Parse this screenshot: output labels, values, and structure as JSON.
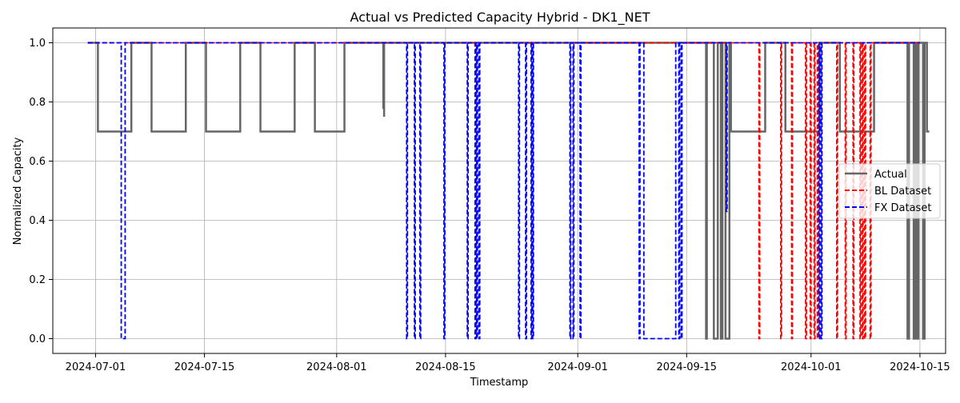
{
  "chart_data": {
    "type": "line",
    "title": "Actual vs Predicted Capacity Hybrid - DK1_NET",
    "xlabel": "Timestamp",
    "ylabel": "Normalized Capacity",
    "x_unit": "days since 2024-07-01",
    "xlim": [
      -5.5,
      109.3
    ],
    "ylim": [
      -0.05,
      1.05
    ],
    "grid": true,
    "legend_position": "center-right",
    "x_ticks": [
      {
        "value": 0,
        "label": "2024-07-01"
      },
      {
        "value": 14,
        "label": "2024-07-15"
      },
      {
        "value": 31,
        "label": "2024-08-01"
      },
      {
        "value": 45,
        "label": "2024-08-15"
      },
      {
        "value": 62,
        "label": "2024-09-01"
      },
      {
        "value": 76,
        "label": "2024-09-15"
      },
      {
        "value": 92,
        "label": "2024-10-01"
      },
      {
        "value": 106,
        "label": "2024-10-15"
      }
    ],
    "y_ticks": [
      {
        "value": 0.0,
        "label": "0.0"
      },
      {
        "value": 0.2,
        "label": "0.2"
      },
      {
        "value": 0.4,
        "label": "0.4"
      },
      {
        "value": 0.6,
        "label": "0.6"
      },
      {
        "value": 0.8,
        "label": "0.8"
      },
      {
        "value": 1.0,
        "label": "1.0"
      }
    ],
    "series": [
      {
        "name": "Actual",
        "color": "#666666",
        "style": "solid",
        "x": [
          -1,
          0.3,
          0.3,
          4.6,
          4.6,
          7.2,
          7.2,
          11.6,
          11.6,
          14.2,
          14.2,
          18.6,
          18.6,
          21.2,
          21.2,
          25.6,
          25.6,
          28.2,
          28.2,
          32.0,
          32.0,
          37.0,
          37.0,
          37.1,
          37.1,
          37.1,
          78.5,
          78.5,
          78.6,
          78.6,
          79.5,
          79.5,
          80.0,
          80.0,
          80.4,
          80.4,
          80.6,
          80.6,
          81.0,
          81.0,
          81.5,
          81.5,
          81.7,
          81.7,
          86.1,
          86.1,
          88.7,
          88.7,
          93.1,
          93.1,
          95.7,
          95.7,
          100.1,
          100.1,
          104.4,
          104.4,
          104.6,
          104.6,
          105.2,
          105.2,
          105.4,
          105.4,
          105.6,
          105.6,
          105.8,
          105.8,
          106.4,
          106.4,
          106.6,
          106.6,
          106.9,
          106.9,
          107.2
        ],
        "y": [
          1.0,
          1.0,
          0.7,
          0.7,
          1.0,
          1.0,
          0.7,
          0.7,
          1.0,
          1.0,
          0.7,
          0.7,
          1.0,
          1.0,
          0.7,
          0.7,
          1.0,
          1.0,
          0.7,
          0.7,
          1.0,
          1.0,
          0.78,
          0.78,
          0.75,
          1.0,
          1.0,
          0.0,
          0.0,
          1.0,
          1.0,
          0.0,
          0.0,
          1.0,
          1.0,
          0.0,
          0.0,
          1.0,
          1.0,
          0.0,
          0.0,
          1.0,
          1.0,
          0.7,
          0.7,
          1.0,
          1.0,
          0.7,
          0.7,
          1.0,
          1.0,
          0.7,
          0.7,
          1.0,
          1.0,
          0.0,
          0.0,
          1.0,
          1.0,
          0.0,
          0.0,
          1.0,
          1.0,
          0.0,
          0.0,
          1.0,
          1.0,
          0.0,
          0.0,
          1.0,
          1.0,
          0.7,
          0.7
        ]
      },
      {
        "name": "BL Dataset",
        "color": "#ff0000",
        "style": "dashed",
        "x": [
          -1,
          85.3,
          85.3,
          85.4,
          85.4,
          88.1,
          88.1,
          88.2,
          88.2,
          89.5,
          89.5,
          89.6,
          89.6,
          91.3,
          91.3,
          91.4,
          91.4,
          91.9,
          91.9,
          92.0,
          92.0,
          92.4,
          92.4,
          92.5,
          92.5,
          92.8,
          92.8,
          92.9,
          92.9,
          95.3,
          95.3,
          95.4,
          95.4,
          96.4,
          96.4,
          96.5,
          96.5,
          97.4,
          97.4,
          97.5,
          97.5,
          98.3,
          98.3,
          98.4,
          98.4,
          98.6,
          98.6,
          98.7,
          98.7,
          98.9,
          98.9,
          99.0,
          99.0,
          99.6,
          99.6,
          99.7,
          99.7,
          106.0
        ],
        "y": [
          1.0,
          1.0,
          0.0,
          0.0,
          1.0,
          1.0,
          0.0,
          0.0,
          1.0,
          1.0,
          0.0,
          0.0,
          1.0,
          1.0,
          0.0,
          0.0,
          1.0,
          1.0,
          0.0,
          0.0,
          1.0,
          1.0,
          0.0,
          0.0,
          1.0,
          1.0,
          0.0,
          0.0,
          1.0,
          1.0,
          0.0,
          0.0,
          1.0,
          1.0,
          0.0,
          0.0,
          1.0,
          1.0,
          0.0,
          0.0,
          1.0,
          1.0,
          0.0,
          0.0,
          1.0,
          1.0,
          0.0,
          0.0,
          1.0,
          1.0,
          0.0,
          0.0,
          1.0,
          1.0,
          0.0,
          0.0,
          1.0,
          1.0
        ]
      },
      {
        "name": "FX Dataset",
        "color": "#0000ff",
        "style": "dashed",
        "x": [
          -1,
          3.3,
          3.3,
          3.8,
          3.8,
          40.0,
          40.0,
          40.1,
          40.1,
          41.0,
          41.0,
          41.1,
          41.1,
          41.7,
          41.7,
          41.8,
          41.8,
          44.8,
          44.8,
          44.9,
          44.9,
          47.8,
          47.8,
          47.9,
          47.9,
          48.8,
          48.8,
          48.9,
          48.9,
          49.0,
          49.0,
          49.1,
          49.1,
          49.3,
          49.3,
          49.4,
          49.4,
          54.4,
          54.4,
          54.5,
          54.5,
          55.3,
          55.3,
          55.4,
          55.4,
          56.0,
          56.0,
          56.1,
          56.1,
          56.2,
          56.2,
          56.3,
          56.3,
          61.0,
          61.0,
          61.1,
          61.1,
          61.4,
          61.4,
          61.5,
          61.5,
          62.3,
          62.3,
          62.4,
          62.4,
          69.9,
          69.9,
          70.0,
          70.0,
          70.5,
          70.5,
          74.6,
          74.6,
          75.0,
          75.0,
          75.1,
          75.1,
          75.3,
          75.3,
          75.4,
          75.4,
          81.1,
          81.1,
          81.2,
          81.2,
          93.0,
          93.0,
          93.1,
          93.1,
          93.3,
          93.3,
          93.4,
          93.4,
          106.0
        ],
        "y": [
          1.0,
          1.0,
          0.0,
          0.0,
          1.0,
          1.0,
          0.0,
          0.0,
          1.0,
          1.0,
          0.0,
          0.0,
          1.0,
          1.0,
          0.0,
          0.0,
          1.0,
          1.0,
          0.0,
          0.0,
          1.0,
          1.0,
          0.0,
          0.0,
          1.0,
          1.0,
          0.0,
          0.0,
          1.0,
          1.0,
          0.0,
          0.0,
          1.0,
          1.0,
          0.0,
          0.0,
          1.0,
          1.0,
          0.0,
          0.0,
          1.0,
          1.0,
          0.0,
          0.0,
          1.0,
          1.0,
          0.0,
          0.0,
          1.0,
          1.0,
          0.0,
          0.0,
          1.0,
          1.0,
          0.0,
          0.0,
          1.0,
          1.0,
          0.0,
          0.0,
          1.0,
          1.0,
          0.0,
          0.0,
          1.0,
          1.0,
          0.0,
          0.0,
          1.0,
          1.0,
          0.0,
          0.0,
          1.0,
          1.0,
          0.0,
          0.0,
          1.0,
          1.0,
          0.0,
          0.0,
          1.0,
          1.0,
          0.43,
          0.43,
          1.0,
          1.0,
          0.0,
          0.0,
          1.0,
          1.0,
          0.0,
          0.0,
          1.0,
          1.0
        ]
      }
    ]
  }
}
